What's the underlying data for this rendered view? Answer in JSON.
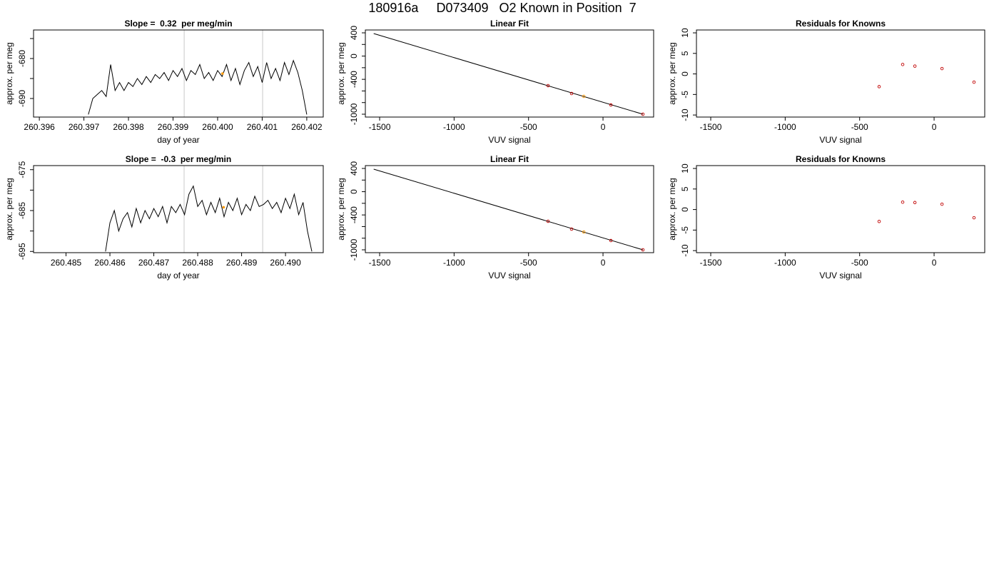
{
  "title": "180916a     D073409   O2 Known in Position  7",
  "chart_data": [
    {
      "type": "line",
      "title": "Slope =  0.32  per meg/min",
      "xlabel": "day of year",
      "ylabel": "approx. per meg",
      "xlim": [
        260.39587,
        260.40237
      ],
      "ylim": [
        -694.64,
        -672.86
      ],
      "xticks": [
        260.396,
        260.397,
        260.398,
        260.399,
        {
          "value": 260.4,
          "label": "260.400"
        },
        260.401,
        260.402
      ],
      "yticks": [
        -680,
        -690
      ],
      "yticks_minor": [
        -675,
        -685
      ],
      "color": "#000000",
      "x": [
        260.3971,
        260.3972,
        260.3973,
        260.3974,
        260.3975,
        260.3976,
        260.3977,
        260.3978,
        260.3979,
        260.398,
        260.3981,
        260.3982,
        260.3983,
        260.3984,
        260.3985,
        260.3986,
        260.3987,
        260.3988,
        260.3989,
        260.399,
        260.3991,
        260.3992,
        260.3993,
        260.3994,
        260.3995,
        260.3996,
        260.3997,
        260.3998,
        260.3999,
        260.4,
        260.4001,
        260.4002,
        260.4003,
        260.4004,
        260.4005,
        260.4006,
        260.4007,
        260.4008,
        260.4009,
        260.401,
        260.4011,
        260.4012,
        260.4013,
        260.4014,
        260.4015,
        260.4016,
        260.4017,
        260.4018,
        260.4019,
        260.402
      ],
      "values": [
        -694,
        -690,
        -689,
        -688,
        -689.5,
        -681.5,
        -688,
        -686,
        -688,
        -686,
        -687,
        -685,
        -686.5,
        -684.5,
        -686,
        -684,
        -685,
        -683.5,
        -685.5,
        -683,
        -684.5,
        -682.5,
        -685.5,
        -683,
        -684,
        -681.5,
        -685,
        -683.5,
        -685.5,
        -683,
        -684.5,
        -681.5,
        -685.5,
        -682.5,
        -686.5,
        -683,
        -681,
        -684.5,
        -682,
        -686,
        -681,
        -685,
        -682.5,
        -685.5,
        -681,
        -684,
        -680.5,
        -683.5,
        -688,
        -694
      ],
      "markers": {
        "x": [
          260.39925,
          260.40101
        ],
        "color": "#c8c8c8"
      },
      "highlight": {
        "x": 260.40011,
        "value": -683.75,
        "color": "#ff9900"
      }
    },
    {
      "type": "scatter",
      "title": "Linear Fit",
      "xlabel": "VUV signal",
      "ylabel": "approx. per meg",
      "xlim": [
        -1596,
        340
      ],
      "ylim": [
        -1049,
        449
      ],
      "xticks": [
        -1500,
        -1000,
        -500,
        0
      ],
      "yticks": [
        400,
        0,
        -400,
        -1000
      ],
      "yticks_minor": [
        200,
        -200,
        -600,
        -800
      ],
      "x": [
        -369,
        -211,
        -129,
        53,
        268
      ],
      "values": [
        -509,
        -644,
        -693,
        -841,
        -1000
      ],
      "point_colors": [
        "#c00000",
        "#c00000",
        "#ff9900",
        "#c00000",
        "#c00000"
      ],
      "line": {
        "x": [
          -1540,
          268
        ],
        "values": [
          388,
          -1000
        ],
        "color": "#000000"
      }
    },
    {
      "type": "scatter",
      "title": "Residuals for Knowns",
      "xlabel": "VUV signal",
      "ylabel": "approx. per meg",
      "xlim": [
        -1596,
        340
      ],
      "ylim": [
        -10.5,
        10.7
      ],
      "xticks": [
        -1500,
        -1000,
        -500,
        0
      ],
      "yticks": [
        10,
        5,
        0,
        -5,
        -10
      ],
      "x": [
        -369,
        -211,
        -129,
        53,
        268
      ],
      "values": [
        -3.1,
        2.3,
        1.9,
        1.3,
        -2.0
      ],
      "point_colors": [
        "#c00000",
        "#c00000",
        "#c00000",
        "#c00000",
        "#c00000"
      ]
    },
    {
      "type": "line",
      "title": "Slope =  -0.3  per meg/min",
      "xlabel": "day of year",
      "ylabel": "approx. per meg",
      "xlim": [
        260.48426,
        260.49086
      ],
      "ylim": [
        -695.3,
        -674
      ],
      "xticks": [
        260.485,
        260.486,
        260.487,
        260.488,
        260.489,
        {
          "value": 260.49,
          "label": "260.490"
        }
      ],
      "yticks": [
        -675,
        -685,
        -695
      ],
      "yticks_minor": [
        -680,
        -690
      ],
      "color": "#000000",
      "x": [
        260.4859,
        260.486,
        260.4861,
        260.4862,
        260.4863,
        260.4864,
        260.4865,
        260.4866,
        260.4867,
        260.4868,
        260.4869,
        260.487,
        260.4871,
        260.4872,
        260.4873,
        260.4874,
        260.4875,
        260.4876,
        260.4877,
        260.4878,
        260.4879,
        260.488,
        260.4881,
        260.4882,
        260.4883,
        260.4884,
        260.4885,
        260.4886,
        260.4887,
        260.4888,
        260.4889,
        260.489,
        260.4891,
        260.4892,
        260.4893,
        260.4894,
        260.4895,
        260.4896,
        260.4897,
        260.4898,
        260.4899,
        260.49,
        260.4901,
        260.4902,
        260.4903,
        260.4904,
        260.4905,
        260.4906
      ],
      "values": [
        -695,
        -688,
        -685,
        -690,
        -687,
        -685.5,
        -689,
        -684.5,
        -688,
        -685,
        -687,
        -684.5,
        -686.5,
        -684,
        -688,
        -684,
        -685.5,
        -683.5,
        -686,
        -681,
        -679,
        -684,
        -682.5,
        -686,
        -683,
        -685.5,
        -682,
        -686.5,
        -683,
        -685,
        -682,
        -686,
        -683.5,
        -685,
        -681.5,
        -684,
        -683.5,
        -682.5,
        -684.5,
        -683,
        -685.5,
        -682,
        -684.5,
        -681,
        -686,
        -683,
        -690,
        -695
      ],
      "markers": {
        "x": [
          260.48769,
          260.48948
        ],
        "color": "#c8c8c8"
      },
      "highlight": {
        "x": 260.48859,
        "value": -684.2,
        "color": "#ff9900"
      }
    },
    {
      "type": "scatter",
      "title": "Linear Fit",
      "xlabel": "VUV signal",
      "ylabel": "approx. per meg",
      "xlim": [
        -1596,
        340
      ],
      "ylim": [
        -1049,
        449
      ],
      "xticks": [
        -1500,
        -1000,
        -500,
        0
      ],
      "yticks": [
        400,
        0,
        -400,
        -1000
      ],
      "yticks_minor": [
        200,
        -200,
        -600,
        -800
      ],
      "x": [
        -369,
        -211,
        -129,
        53,
        268
      ],
      "values": [
        -509,
        -644,
        -693,
        -841,
        -1000
      ],
      "point_colors": [
        "#c00000",
        "#c00000",
        "#ff9900",
        "#c00000",
        "#c00000"
      ],
      "line": {
        "x": [
          -1540,
          268
        ],
        "values": [
          388,
          -1000
        ],
        "color": "#000000"
      }
    },
    {
      "type": "scatter",
      "title": "Residuals for Knowns",
      "xlabel": "VUV signal",
      "ylabel": "approx. per meg",
      "xlim": [
        -1596,
        340
      ],
      "ylim": [
        -10.5,
        10.7
      ],
      "xticks": [
        -1500,
        -1000,
        -500,
        0
      ],
      "yticks": [
        10,
        5,
        0,
        -5,
        -10
      ],
      "x": [
        -369,
        -211,
        -129,
        53,
        268
      ],
      "values": [
        -2.9,
        1.8,
        1.7,
        1.3,
        -2.0
      ],
      "point_colors": [
        "#c00000",
        "#c00000",
        "#c00000",
        "#c00000",
        "#c00000"
      ]
    }
  ]
}
